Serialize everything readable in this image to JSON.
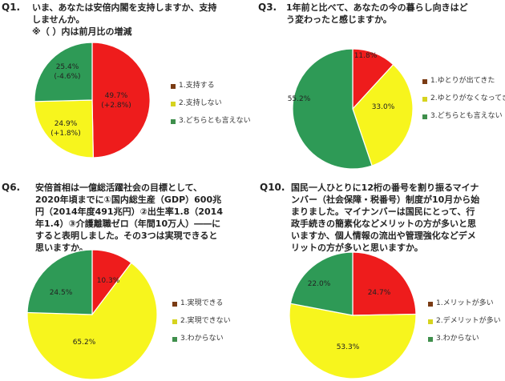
{
  "charts": [
    {
      "qnum": "Q1.",
      "question_lines": [
        "いま、あなたは安倍内閣を支持しますか、支持",
        "しませんか。",
        "※（ ）内は前月比の増減"
      ],
      "slice_labels": [
        [
          "49.7%",
          "(+2.8%)"
        ],
        [
          "24.9%",
          "(+1.8%)"
        ],
        [
          "25.4%",
          "(-4.6%)"
        ]
      ]
    },
    {
      "qnum": "Q3.",
      "question_lines": [
        "1年前と比べて、あなたの今の暮らし向きはど",
        "う変わったと感じますか。"
      ],
      "slice_labels": [
        [
          "11.8%"
        ],
        [
          "33.0%"
        ],
        [
          "55.2%"
        ]
      ]
    },
    {
      "qnum": "Q6.",
      "question_lines": [
        "安倍首相は一億総活躍社会の目標として、",
        "2020年頃までに①国内総生産（GDP）600兆",
        "円（2014年度491兆円）②出生率1.8（2014",
        "年1.4）③介護離職ゼロ（年間10万人）――に",
        "すると表明しました。その3つは実現できると",
        "思いますか。"
      ],
      "slice_labels": [
        [
          "10.3%"
        ],
        [
          "65.2%"
        ],
        [
          "24.5%"
        ]
      ]
    },
    {
      "qnum": "Q10.",
      "question_lines": [
        "国民一人ひとりに12桁の番号を割り振るマイナ",
        "ンバー（社会保障・税番号）制度が10月から始",
        "まりました。マイナンバーは国民にとって、行",
        "政手続きの簡素化などメリットの方が多いと思",
        "いますか、個人情報の流出や管理強化などデメ",
        "リットの方が多いと思いますか。"
      ],
      "slice_labels": [
        [
          "24.7%"
        ],
        [
          "53.3%"
        ],
        [
          "22.0%"
        ]
      ]
    }
  ],
  "chart_data": [
    {
      "type": "pie",
      "categories": [
        "1.支持する",
        "2.支持しない",
        "3.どちらとも言えない"
      ],
      "values": [
        49.7,
        24.9,
        25.4
      ],
      "change_from_previous_month": [
        "+2.8",
        "+1.8",
        "-4.6"
      ],
      "colors": [
        "#ee1c1c",
        "#f7f51d",
        "#2e9a56"
      ],
      "legend_position": "right"
    },
    {
      "type": "pie",
      "categories": [
        "1.ゆとりが出てきた",
        "2.ゆとりがなくなってきた",
        "3.どちらとも言えない"
      ],
      "values": [
        11.8,
        33.0,
        55.2
      ],
      "colors": [
        "#ee1c1c",
        "#f7f51d",
        "#2e9a56"
      ],
      "legend_position": "right"
    },
    {
      "type": "pie",
      "categories": [
        "1.実現できる",
        "2.実現できない",
        "3.わからない"
      ],
      "values": [
        10.3,
        65.2,
        24.5
      ],
      "colors": [
        "#ee1c1c",
        "#f7f51d",
        "#2e9a56"
      ],
      "legend_position": "right"
    },
    {
      "type": "pie",
      "categories": [
        "1.メリットが多い",
        "2.デメリットが多い",
        "3.わからない"
      ],
      "values": [
        24.7,
        53.3,
        22.0
      ],
      "colors": [
        "#ee1c1c",
        "#f7f51d",
        "#2e9a56"
      ],
      "legend_position": "right"
    }
  ],
  "legend_swatch_colors": [
    "#7a3b14",
    "#d6d31f",
    "#3f8f4c"
  ]
}
